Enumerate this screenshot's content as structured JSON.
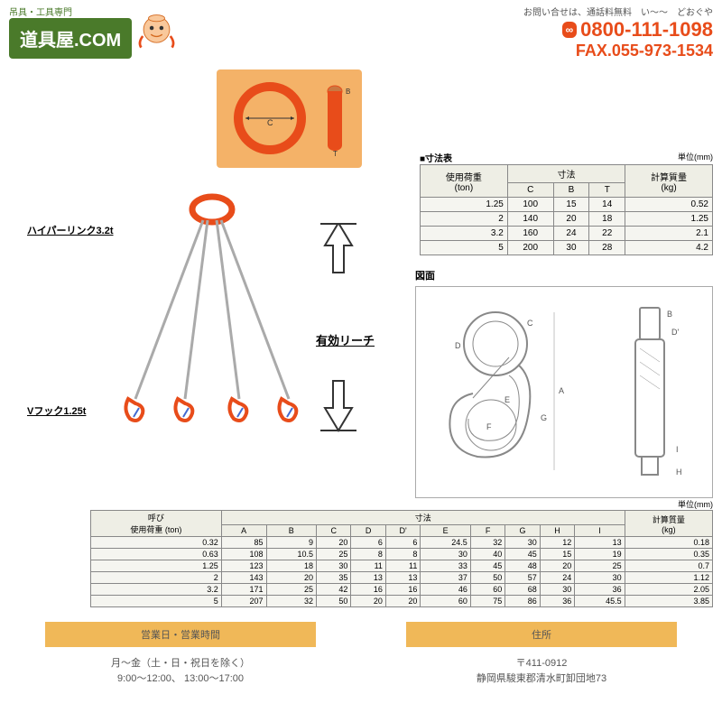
{
  "header": {
    "logo_text": "道具屋.COM",
    "logo_sub": "吊具・工具専門",
    "contact_label": "お問い合せは、通話料無料　い〜〜　どおぐや",
    "phone_prefix": "∞",
    "phone": "0800-111-1098",
    "fax": "FAX.055-973-1534"
  },
  "labels": {
    "hyperlink": "ハイパーリンク3.2t",
    "reach": "有効リーチ",
    "vhook": "Vフック1.25t"
  },
  "small_table": {
    "title": "■寸法表",
    "unit": "単位(mm)",
    "headers": {
      "load": "使用荷重\n(ton)",
      "dim": "寸法",
      "c": "C",
      "b": "B",
      "t": "T",
      "weight": "計算質量\n(kg)"
    },
    "rows": [
      {
        "load": "1.25",
        "c": "100",
        "b": "15",
        "t": "14",
        "weight": "0.52"
      },
      {
        "load": "2",
        "c": "140",
        "b": "20",
        "t": "18",
        "weight": "1.25"
      },
      {
        "load": "3.2",
        "c": "160",
        "b": "24",
        "t": "22",
        "weight": "2.1"
      },
      {
        "load": "5",
        "c": "200",
        "b": "30",
        "t": "28",
        "weight": "4.2"
      }
    ]
  },
  "hook_drawing": {
    "title": "図面"
  },
  "large_table": {
    "unit": "単位(mm)",
    "headers": {
      "load": "呼び\n使用荷重 (ton)",
      "dim": "寸法",
      "weight": "計算質量\n(kg)",
      "a": "A",
      "b": "B",
      "c": "C",
      "d": "D",
      "dp": "D'",
      "e": "E",
      "f": "F",
      "g": "G",
      "h": "H",
      "i": "I"
    },
    "rows": [
      {
        "load": "0.32",
        "a": "85",
        "b": "9",
        "c": "20",
        "d": "6",
        "dp": "6",
        "e": "24.5",
        "f": "32",
        "g": "30",
        "h": "12",
        "i": "13",
        "w": "0.18"
      },
      {
        "load": "0.63",
        "a": "108",
        "b": "10.5",
        "c": "25",
        "d": "8",
        "dp": "8",
        "e": "30",
        "f": "40",
        "g": "45",
        "h": "15",
        "i": "19",
        "w": "0.35"
      },
      {
        "load": "1.25",
        "a": "123",
        "b": "18",
        "c": "30",
        "d": "11",
        "dp": "11",
        "e": "33",
        "f": "45",
        "g": "48",
        "h": "20",
        "i": "25",
        "w": "0.7"
      },
      {
        "load": "2",
        "a": "143",
        "b": "20",
        "c": "35",
        "d": "13",
        "dp": "13",
        "e": "37",
        "f": "50",
        "g": "57",
        "h": "24",
        "i": "30",
        "w": "1.12"
      },
      {
        "load": "3.2",
        "a": "171",
        "b": "25",
        "c": "42",
        "d": "16",
        "dp": "16",
        "e": "46",
        "f": "60",
        "g": "68",
        "h": "30",
        "i": "36",
        "w": "2.05"
      },
      {
        "load": "5",
        "a": "207",
        "b": "32",
        "c": "50",
        "d": "20",
        "dp": "20",
        "e": "60",
        "f": "75",
        "g": "86",
        "h": "36",
        "i": "45.5",
        "w": "3.85"
      }
    ]
  },
  "footer": {
    "hours_title": "営業日・営業時間",
    "hours_body1": "月〜金（土・日・祝日を除く）",
    "hours_body2": "9:00〜12:00、 13:00〜17:00",
    "addr_title": "住所",
    "addr_body1": "〒411-0912",
    "addr_body2": "静岡県駿東郡清水町卸団地73"
  },
  "colors": {
    "orange": "#e84c1a",
    "green": "#4a7a2a",
    "tan": "#f4b268",
    "footer_bg": "#f0b858"
  }
}
